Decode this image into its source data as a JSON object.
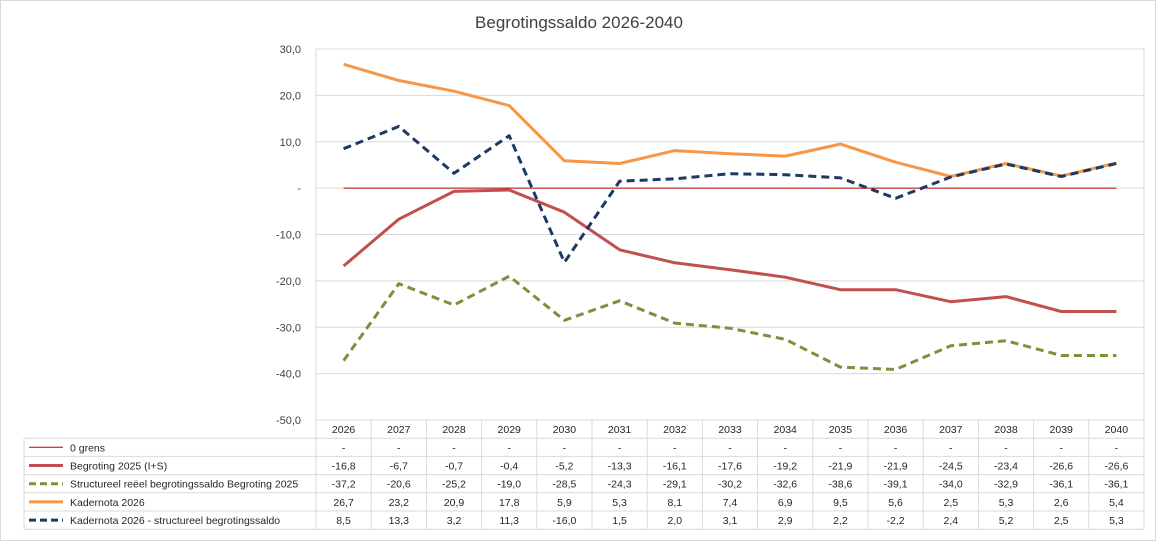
{
  "chart_data": {
    "type": "line",
    "title": "Begrotingssaldo 2026-2040",
    "x": [
      "2026",
      "2027",
      "2028",
      "2029",
      "2030",
      "2031",
      "2032",
      "2033",
      "2034",
      "2035",
      "2036",
      "2037",
      "2038",
      "2039",
      "2040"
    ],
    "ylim": [
      -50,
      30
    ],
    "yticks": [
      30,
      20,
      10,
      0,
      -10,
      -20,
      -30,
      -40,
      -50
    ],
    "ytick_labels": [
      "30,0",
      "20,0",
      "10,0",
      "-",
      "-10,0",
      "-20,0",
      "-30,0",
      "-40,0",
      "-50,0"
    ],
    "grid": true,
    "legend": "data-table-below",
    "series": [
      {
        "name": "0 grens",
        "color": "#c00000",
        "style": "solid-thin",
        "values": [
          0,
          0,
          0,
          0,
          0,
          0,
          0,
          0,
          0,
          0,
          0,
          0,
          0,
          0,
          0
        ],
        "labels": [
          "-",
          "-",
          "-",
          "-",
          "-",
          "-",
          "-",
          "-",
          "-",
          "-",
          "-",
          "-",
          "-",
          "-",
          "-"
        ]
      },
      {
        "name": "Begroting 2025 (I+S)",
        "color": "#c0504d",
        "style": "solid",
        "values": [
          -16.8,
          -6.7,
          -0.7,
          -0.4,
          -5.2,
          -13.3,
          -16.1,
          -17.6,
          -19.2,
          -21.9,
          -21.9,
          -24.5,
          -23.4,
          -26.6,
          -26.6
        ],
        "labels": [
          "-16,8",
          "-6,7",
          "-0,7",
          "-0,4",
          "-5,2",
          "-13,3",
          "-16,1",
          "-17,6",
          "-19,2",
          "-21,9",
          "-21,9",
          "-24,5",
          "-23,4",
          "-26,6",
          "-26,6"
        ]
      },
      {
        "name": "Structureel reëel begrotingssaldo Begroting 2025",
        "color": "#77933c",
        "style": "dashed",
        "values": [
          -37.2,
          -20.6,
          -25.2,
          -19.0,
          -28.5,
          -24.3,
          -29.1,
          -30.2,
          -32.6,
          -38.6,
          -39.1,
          -34.0,
          -32.9,
          -36.1,
          -36.1
        ],
        "labels": [
          "-37,2",
          "-20,6",
          "-25,2",
          "-19,0",
          "-28,5",
          "-24,3",
          "-29,1",
          "-30,2",
          "-32,6",
          "-38,6",
          "-39,1",
          "-34,0",
          "-32,9",
          "-36,1",
          "-36,1"
        ]
      },
      {
        "name": "Kadernota 2026",
        "color": "#f79646",
        "style": "solid",
        "values": [
          26.7,
          23.2,
          20.9,
          17.8,
          5.9,
          5.3,
          8.1,
          7.4,
          6.9,
          9.5,
          5.6,
          2.5,
          5.3,
          2.6,
          5.4
        ],
        "labels": [
          "26,7",
          "23,2",
          "20,9",
          "17,8",
          "5,9",
          "5,3",
          "8,1",
          "7,4",
          "6,9",
          "9,5",
          "5,6",
          "2,5",
          "5,3",
          "2,6",
          "5,4"
        ]
      },
      {
        "name": "Kadernota 2026 - structureel begrotingssaldo",
        "color": "#1f3864",
        "style": "dashed",
        "values": [
          8.5,
          13.3,
          3.2,
          11.3,
          -16.0,
          1.5,
          2.0,
          3.1,
          2.9,
          2.2,
          -2.2,
          2.4,
          5.2,
          2.5,
          5.3
        ],
        "labels": [
          "8,5",
          "13,3",
          "3,2",
          "11,3",
          "-16,0",
          "1,5",
          "2,0",
          "3,1",
          "2,9",
          "2,2",
          "-2,2",
          "2,4",
          "5,2",
          "2,5",
          "5,3"
        ]
      }
    ]
  }
}
